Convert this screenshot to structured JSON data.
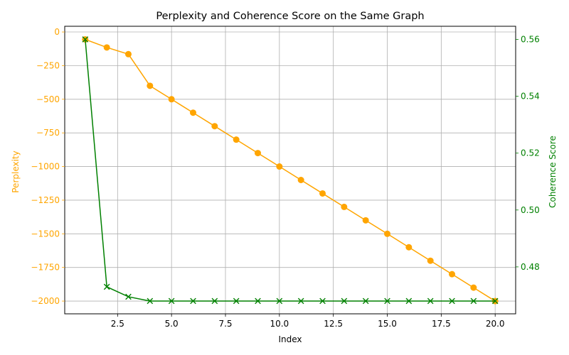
{
  "chart_data": {
    "type": "line",
    "title": "Perplexity and Coherence Score on the Same Graph",
    "xlabel": "Index",
    "xlim": [
      0.05,
      20.95
    ],
    "xticks": [
      2.5,
      5.0,
      7.5,
      10.0,
      12.5,
      15.0,
      17.5,
      20.0
    ],
    "xtick_labels": [
      "2.5",
      "5.0",
      "7.5",
      "10.0",
      "12.5",
      "15.0",
      "17.5",
      "20.0"
    ],
    "x": [
      1,
      2,
      3,
      4,
      5,
      6,
      7,
      8,
      9,
      10,
      11,
      12,
      13,
      14,
      15,
      16,
      17,
      18,
      19,
      20
    ],
    "grid": true,
    "series": [
      {
        "name": "",
        "axis": "left",
        "ylabel": "Perplexity",
        "color": "#ffa500",
        "marker": "circle",
        "ylim": [
          -2094.7,
          42.4
        ],
        "yticks": [
          0,
          -250,
          -500,
          -750,
          -1000,
          -1250,
          -1500,
          -1750,
          -2000
        ],
        "ytick_labels": [
          "0",
          "−250",
          "−500",
          "−750",
          "−1000",
          "−1250",
          "−1500",
          "−1750",
          "−2000"
        ],
        "values": [
          -55,
          -115,
          -165,
          -400,
          -500,
          -600,
          -700,
          -800,
          -900,
          -1000,
          -1100,
          -1200,
          -1300,
          -1400,
          -1500,
          -1600,
          -1700,
          -1800,
          -1900,
          -2000
        ]
      },
      {
        "name": "",
        "axis": "right",
        "ylabel": "Coherence Score",
        "color": "#008000",
        "marker": "x",
        "ylim": [
          0.4635,
          0.5646
        ],
        "yticks": [
          0.48,
          0.5,
          0.52,
          0.54,
          0.56
        ],
        "ytick_labels": [
          "0.48",
          "0.50",
          "0.52",
          "0.54",
          "0.56"
        ],
        "values": [
          0.56,
          0.473,
          0.4695,
          0.468,
          0.468,
          0.468,
          0.468,
          0.468,
          0.468,
          0.468,
          0.468,
          0.468,
          0.468,
          0.468,
          0.468,
          0.468,
          0.468,
          0.468,
          0.468,
          0.468
        ]
      }
    ]
  }
}
